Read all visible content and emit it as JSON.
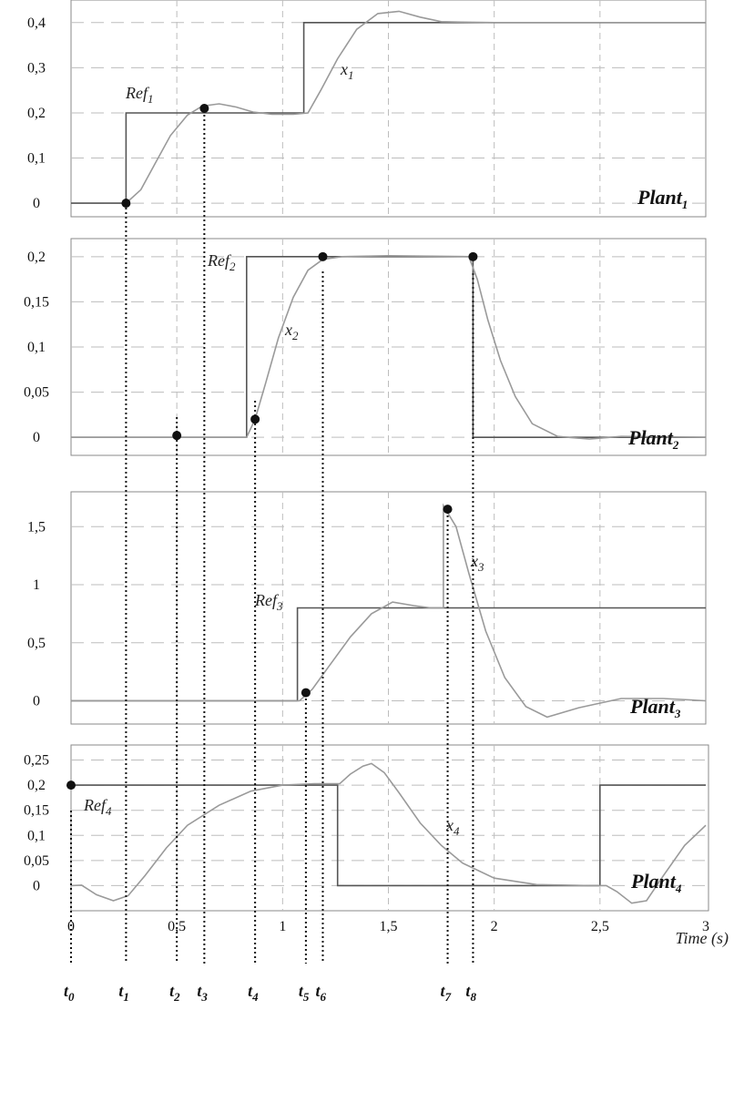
{
  "chart_data": [
    {
      "type": "line",
      "panel": "Plant1",
      "plant_label": {
        "base": "Plant",
        "sub": "1"
      },
      "yticks": [
        "0",
        "0,1",
        "0,2",
        "0,3",
        "0,4"
      ],
      "ytick_values": [
        0,
        0.1,
        0.2,
        0.3,
        0.4
      ],
      "ylim": [
        -0.03,
        0.45
      ],
      "grid": true,
      "series": [
        {
          "name": "Ref1",
          "label": {
            "base": "Ref",
            "sub": "1"
          },
          "points": [
            [
              0,
              0
            ],
            [
              0.26,
              0
            ],
            [
              0.26,
              0.2
            ],
            [
              1.1,
              0.2
            ],
            [
              1.1,
              0.4
            ],
            [
              3,
              0.4
            ]
          ]
        },
        {
          "name": "x1",
          "label": {
            "base": "x",
            "sub": "1"
          },
          "points": [
            [
              0.26,
              0
            ],
            [
              0.33,
              0.03
            ],
            [
              0.4,
              0.09
            ],
            [
              0.47,
              0.15
            ],
            [
              0.55,
              0.195
            ],
            [
              0.62,
              0.215
            ],
            [
              0.7,
              0.22
            ],
            [
              0.78,
              0.213
            ],
            [
              0.86,
              0.202
            ],
            [
              0.95,
              0.197
            ],
            [
              1.05,
              0.197
            ],
            [
              1.12,
              0.2
            ],
            [
              1.18,
              0.25
            ],
            [
              1.26,
              0.32
            ],
            [
              1.35,
              0.385
            ],
            [
              1.45,
              0.42
            ],
            [
              1.55,
              0.425
            ],
            [
              1.65,
              0.412
            ],
            [
              1.75,
              0.402
            ],
            [
              1.85,
              0.401
            ],
            [
              2,
              0.4
            ],
            [
              3,
              0.4
            ]
          ]
        }
      ],
      "markers": [
        [
          0.26,
          0
        ],
        [
          0.63,
          0.21
        ]
      ]
    },
    {
      "type": "line",
      "panel": "Plant2",
      "plant_label": {
        "base": "Plant",
        "sub": "2"
      },
      "yticks": [
        "0",
        "0,05",
        "0,1",
        "0,15",
        "0,2"
      ],
      "ytick_values": [
        0,
        0.05,
        0.1,
        0.15,
        0.2
      ],
      "ylim": [
        -0.02,
        0.22
      ],
      "grid": true,
      "series": [
        {
          "name": "Ref2",
          "label": {
            "base": "Ref",
            "sub": "2"
          },
          "points": [
            [
              0,
              0
            ],
            [
              0.83,
              0
            ],
            [
              0.83,
              0.2
            ],
            [
              1.9,
              0.2
            ],
            [
              1.9,
              0
            ],
            [
              3,
              0
            ]
          ]
        },
        {
          "name": "x2",
          "label": {
            "base": "x",
            "sub": "2"
          },
          "points": [
            [
              0,
              0
            ],
            [
              0.83,
              0
            ],
            [
              0.87,
              0.02
            ],
            [
              0.92,
              0.06
            ],
            [
              0.98,
              0.11
            ],
            [
              1.05,
              0.155
            ],
            [
              1.12,
              0.185
            ],
            [
              1.19,
              0.197
            ],
            [
              1.28,
              0.2
            ],
            [
              1.5,
              0.201
            ],
            [
              1.88,
              0.2
            ],
            [
              1.92,
              0.175
            ],
            [
              1.97,
              0.13
            ],
            [
              2.03,
              0.085
            ],
            [
              2.1,
              0.045
            ],
            [
              2.18,
              0.015
            ],
            [
              2.3,
              0.001
            ],
            [
              2.45,
              -0.002
            ],
            [
              2.6,
              0.001
            ],
            [
              3,
              0
            ]
          ]
        }
      ],
      "markers": [
        [
          0.5,
          0.002
        ],
        [
          0.87,
          0.02
        ],
        [
          1.19,
          0.2
        ],
        [
          1.9,
          0.2
        ]
      ]
    },
    {
      "type": "line",
      "panel": "Plant3",
      "plant_label": {
        "base": "Plant",
        "sub": "3"
      },
      "yticks": [
        "0",
        "0,5",
        "1",
        "1,5"
      ],
      "ytick_values": [
        0,
        0.5,
        1,
        1.5
      ],
      "ylim": [
        -0.2,
        1.8
      ],
      "grid": true,
      "series": [
        {
          "name": "Ref3",
          "label": {
            "base": "Ref",
            "sub": "3"
          },
          "points": [
            [
              0,
              0
            ],
            [
              1.07,
              0
            ],
            [
              1.07,
              0.8
            ],
            [
              3,
              0.8
            ]
          ]
        },
        {
          "name": "x3",
          "label": {
            "base": "x",
            "sub": "3"
          },
          "points": [
            [
              0,
              0
            ],
            [
              1.08,
              0
            ],
            [
              1.14,
              0.1
            ],
            [
              1.22,
              0.3
            ],
            [
              1.32,
              0.55
            ],
            [
              1.42,
              0.75
            ],
            [
              1.52,
              0.85
            ],
            [
              1.62,
              0.82
            ],
            [
              1.7,
              0.8
            ],
            [
              1.76,
              0.8
            ],
            [
              1.76,
              1.68
            ],
            [
              1.82,
              1.5
            ],
            [
              1.88,
              1.1
            ],
            [
              1.96,
              0.6
            ],
            [
              2.05,
              0.2
            ],
            [
              2.15,
              -0.05
            ],
            [
              2.25,
              -0.14
            ],
            [
              2.4,
              -0.06
            ],
            [
              2.6,
              0.02
            ],
            [
              2.8,
              0.02
            ],
            [
              3,
              0
            ]
          ]
        }
      ],
      "markers": [
        [
          1.11,
          0.07
        ],
        [
          1.78,
          1.65
        ]
      ]
    },
    {
      "type": "line",
      "panel": "Plant4",
      "plant_label": {
        "base": "Plant",
        "sub": "4"
      },
      "yticks": [
        "0",
        "0,05",
        "0,1",
        "0,15",
        "0,2",
        "0,25"
      ],
      "ytick_values": [
        0,
        0.05,
        0.1,
        0.15,
        0.2,
        0.25
      ],
      "ylim": [
        -0.05,
        0.28
      ],
      "xticks": [
        "0",
        "0,5",
        "1",
        "1,5",
        "2",
        "2,5",
        "3"
      ],
      "xtick_values": [
        0,
        0.5,
        1,
        1.5,
        2,
        2.5,
        3
      ],
      "xlim": [
        0,
        3
      ],
      "xlabel": "Time (s)",
      "grid": true,
      "series": [
        {
          "name": "Ref4",
          "label": {
            "base": "Ref",
            "sub": "4"
          },
          "points": [
            [
              0,
              0.2
            ],
            [
              1.26,
              0.2
            ],
            [
              1.26,
              0
            ],
            [
              2.5,
              0
            ],
            [
              2.5,
              0.2
            ],
            [
              3,
              0.2
            ]
          ]
        },
        {
          "name": "x4",
          "label": {
            "base": "x",
            "sub": "4"
          },
          "points": [
            [
              0,
              0
            ],
            [
              0.05,
              0.001
            ],
            [
              0.12,
              -0.018
            ],
            [
              0.2,
              -0.03
            ],
            [
              0.27,
              -0.02
            ],
            [
              0.35,
              0.02
            ],
            [
              0.45,
              0.075
            ],
            [
              0.55,
              0.12
            ],
            [
              0.7,
              0.16
            ],
            [
              0.85,
              0.188
            ],
            [
              1,
              0.2
            ],
            [
              1.15,
              0.203
            ],
            [
              1.27,
              0.203
            ],
            [
              1.32,
              0.222
            ],
            [
              1.38,
              0.238
            ],
            [
              1.42,
              0.243
            ],
            [
              1.48,
              0.225
            ],
            [
              1.55,
              0.185
            ],
            [
              1.65,
              0.125
            ],
            [
              1.75,
              0.08
            ],
            [
              1.85,
              0.045
            ],
            [
              2,
              0.015
            ],
            [
              2.2,
              0.002
            ],
            [
              2.45,
              0
            ],
            [
              2.53,
              0
            ],
            [
              2.58,
              -0.012
            ],
            [
              2.65,
              -0.035
            ],
            [
              2.72,
              -0.03
            ],
            [
              2.8,
              0.02
            ],
            [
              2.9,
              0.08
            ],
            [
              3,
              0.12
            ]
          ]
        }
      ],
      "markers": [
        [
          0,
          0.2
        ]
      ]
    }
  ],
  "time_markers": [
    {
      "base": "t",
      "sub": "0",
      "t": 0
    },
    {
      "base": "t",
      "sub": "1",
      "t": 0.26
    },
    {
      "base": "t",
      "sub": "2",
      "t": 0.5
    },
    {
      "base": "t",
      "sub": "3",
      "t": 0.63
    },
    {
      "base": "t",
      "sub": "4",
      "t": 0.87
    },
    {
      "base": "t",
      "sub": "5",
      "t": 1.11
    },
    {
      "base": "t",
      "sub": "6",
      "t": 1.19
    },
    {
      "base": "t",
      "sub": "7",
      "t": 1.78
    },
    {
      "base": "t",
      "sub": "8",
      "t": 1.9
    }
  ],
  "colors": {
    "ref": "#555555",
    "response": "#9a9a9a",
    "grid": "#bdbdbd",
    "frame": "#8a8a8a",
    "marker": "#111111",
    "guide": "#111111"
  }
}
